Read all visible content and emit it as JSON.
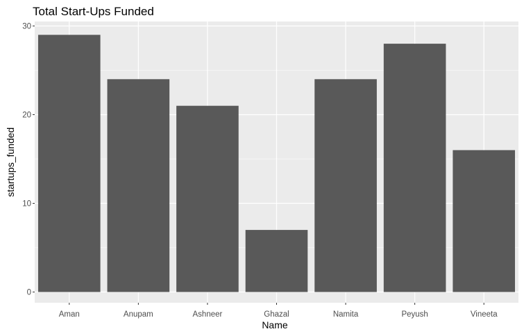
{
  "chart_data": {
    "type": "bar",
    "title": "Total Start-Ups Funded",
    "xlabel": "Name",
    "ylabel": "startups_funded",
    "categories": [
      "Aman",
      "Anupam",
      "Ashneer",
      "Ghazal",
      "Namita",
      "Peyush",
      "Vineeta"
    ],
    "values": [
      29,
      24,
      21,
      7,
      24,
      28,
      16
    ],
    "ylim": [
      0,
      30
    ],
    "yticks": [
      0,
      10,
      20,
      30
    ],
    "grid": true,
    "legend": "none",
    "colors": {
      "bar": "#595959",
      "panel": "#ebebeb",
      "grid_major": "#ffffff",
      "grid_minor": "#f5f5f5",
      "tick_text": "#4d4d4d"
    }
  }
}
